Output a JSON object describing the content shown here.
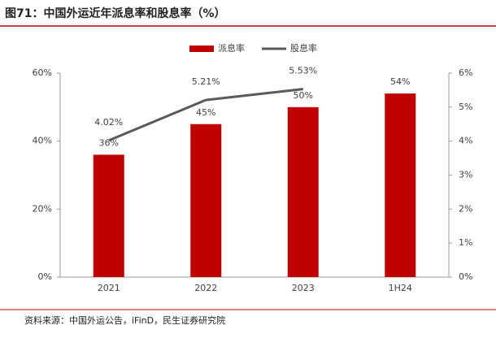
{
  "chart_data": {
    "type": "bar-line",
    "title": "图71：中国外运近年派息率和股息率（%）",
    "source": "资料来源：中国外运公告，iFinD，民生证券研究院",
    "categories": [
      "2021",
      "2022",
      "2023",
      "1H24"
    ],
    "series": [
      {
        "name": "派息率",
        "color": "#c00000",
        "type": "bar",
        "axis": "y",
        "values": [
          36,
          45,
          50,
          54
        ],
        "value_labels": [
          "36%",
          "45%",
          "50%",
          "54%"
        ]
      },
      {
        "name": "股息率",
        "color": "#595959",
        "type": "line",
        "axis": "y2",
        "values": [
          4.02,
          5.21,
          5.53,
          null
        ],
        "value_labels": [
          "4.02%",
          "5.21%",
          "5.53%",
          null
        ]
      }
    ],
    "ylim": [
      0,
      60
    ],
    "yticks": [
      {
        "value": 0,
        "label": "0%"
      },
      {
        "value": 20,
        "label": "20%"
      },
      {
        "value": 40,
        "label": "40%"
      },
      {
        "value": 60,
        "label": "60%"
      }
    ],
    "y2lim": [
      0,
      6
    ],
    "y2ticks": [
      {
        "value": 0,
        "label": "0%"
      },
      {
        "value": 1,
        "label": "1%"
      },
      {
        "value": 2,
        "label": "2%"
      },
      {
        "value": 3,
        "label": "3%"
      },
      {
        "value": 4,
        "label": "4%"
      },
      {
        "value": 5,
        "label": "5%"
      },
      {
        "value": 6,
        "label": "6%"
      }
    ],
    "legend": "top"
  }
}
